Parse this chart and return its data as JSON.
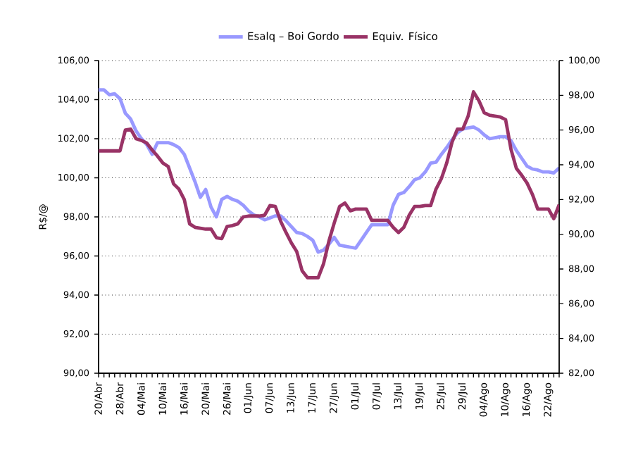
{
  "chart_data": {
    "type": "line",
    "ylabel": "R$/@",
    "grid": "y",
    "legend": "top",
    "categories": [
      "20/Abr",
      null,
      null,
      null,
      "28/Abr",
      null,
      null,
      null,
      "04/Mai",
      null,
      null,
      null,
      "10/Mai",
      null,
      null,
      null,
      "16/Mai",
      null,
      null,
      null,
      "20/Mai",
      null,
      null,
      null,
      "26/Mai",
      null,
      null,
      null,
      "01/Jun",
      null,
      null,
      null,
      "07/Jun",
      null,
      null,
      null,
      "13/Jun",
      null,
      null,
      null,
      "17/Jun",
      null,
      null,
      null,
      "27/Jun",
      null,
      null,
      null,
      "01/Jul",
      null,
      null,
      null,
      "07/Jul",
      null,
      null,
      null,
      "13/Jul",
      null,
      null,
      null,
      "19/Jul",
      null,
      null,
      null,
      "25/Jul",
      null,
      null,
      null,
      "29/Jul",
      null,
      null,
      null,
      "04/Ago",
      null,
      null,
      null,
      "10/Ago",
      null,
      null,
      null,
      "16/Ago",
      null,
      null,
      null,
      "22/Ago",
      null,
      null
    ],
    "series": [
      {
        "name": "Esalq – Boi Gordo",
        "color": "#9999ff",
        "values": [
          104.5,
          104.5,
          104.25,
          104.3,
          104.05,
          103.3,
          103.0,
          102.4,
          102.0,
          101.7,
          101.2,
          101.8,
          101.8,
          101.8,
          101.7,
          101.55,
          101.2,
          100.5,
          99.8,
          99.0,
          99.4,
          98.5,
          98.0,
          98.9,
          99.05,
          98.9,
          98.8,
          98.6,
          98.3,
          98.1,
          98.0,
          97.85,
          97.95,
          98.05,
          98.05,
          97.8,
          97.5,
          97.2,
          97.15,
          97.0,
          96.8,
          96.2,
          96.3,
          96.6,
          96.95,
          96.55,
          96.5,
          96.45,
          96.4,
          96.8,
          97.2,
          97.6,
          97.6,
          97.6,
          97.6,
          98.6,
          99.15,
          99.25,
          99.55,
          99.9,
          100.0,
          100.3,
          100.75,
          100.8,
          101.2,
          101.55,
          101.95,
          102.3,
          102.5,
          102.55,
          102.6,
          102.45,
          102.2,
          102.0,
          102.05,
          102.1,
          102.1,
          101.9,
          101.4,
          101.0,
          100.6,
          100.45,
          100.4,
          100.3,
          100.3,
          100.25,
          100.5
        ]
      },
      {
        "name": "Equiv. Físico",
        "color": "#993366",
        "axis": "y2",
        "values": [
          94.8,
          94.8,
          94.8,
          94.8,
          94.8,
          96.0,
          96.05,
          95.5,
          95.4,
          95.25,
          94.85,
          94.5,
          94.1,
          93.9,
          92.9,
          92.6,
          92.0,
          90.6,
          90.4,
          90.35,
          90.3,
          90.3,
          89.8,
          89.75,
          90.45,
          90.5,
          90.6,
          91.0,
          91.05,
          91.05,
          91.05,
          91.1,
          91.65,
          91.6,
          90.75,
          90.1,
          89.5,
          89.0,
          87.9,
          87.5,
          87.5,
          87.5,
          88.3,
          89.6,
          90.65,
          91.6,
          91.8,
          91.35,
          91.45,
          91.45,
          91.45,
          90.8,
          90.8,
          90.8,
          90.8,
          90.4,
          90.1,
          90.4,
          91.1,
          91.6,
          91.6,
          91.65,
          91.65,
          92.6,
          93.2,
          94.1,
          95.3,
          96.05,
          96.05,
          96.8,
          98.2,
          97.7,
          97.0,
          96.85,
          96.8,
          96.75,
          96.6,
          94.9,
          93.8,
          93.4,
          92.95,
          92.3,
          91.45,
          91.45,
          91.45,
          90.9,
          91.7
        ]
      }
    ],
    "ylim": [
      90,
      106
    ],
    "yticks": [
      {
        "value": 90,
        "label": "90,00"
      },
      {
        "value": 92,
        "label": "92,00"
      },
      {
        "value": 94,
        "label": "94,00"
      },
      {
        "value": 96,
        "label": "96,00"
      },
      {
        "value": 98,
        "label": "98,00"
      },
      {
        "value": 100,
        "label": "100,00"
      },
      {
        "value": 102,
        "label": "102,00"
      },
      {
        "value": 104,
        "label": "104,00"
      },
      {
        "value": 106,
        "label": "106,00"
      }
    ],
    "y2lim": [
      82,
      100
    ],
    "y2ticks": [
      {
        "value": 82,
        "label": "82,00"
      },
      {
        "value": 84,
        "label": "84,00"
      },
      {
        "value": 86,
        "label": "86,00"
      },
      {
        "value": 88,
        "label": "88,00"
      },
      {
        "value": 90,
        "label": "90,00"
      },
      {
        "value": 92,
        "label": "92,00"
      },
      {
        "value": 94,
        "label": "94,00"
      },
      {
        "value": 96,
        "label": "96,00"
      },
      {
        "value": 98,
        "label": "98,00"
      },
      {
        "value": 100,
        "label": "100,00"
      }
    ]
  }
}
